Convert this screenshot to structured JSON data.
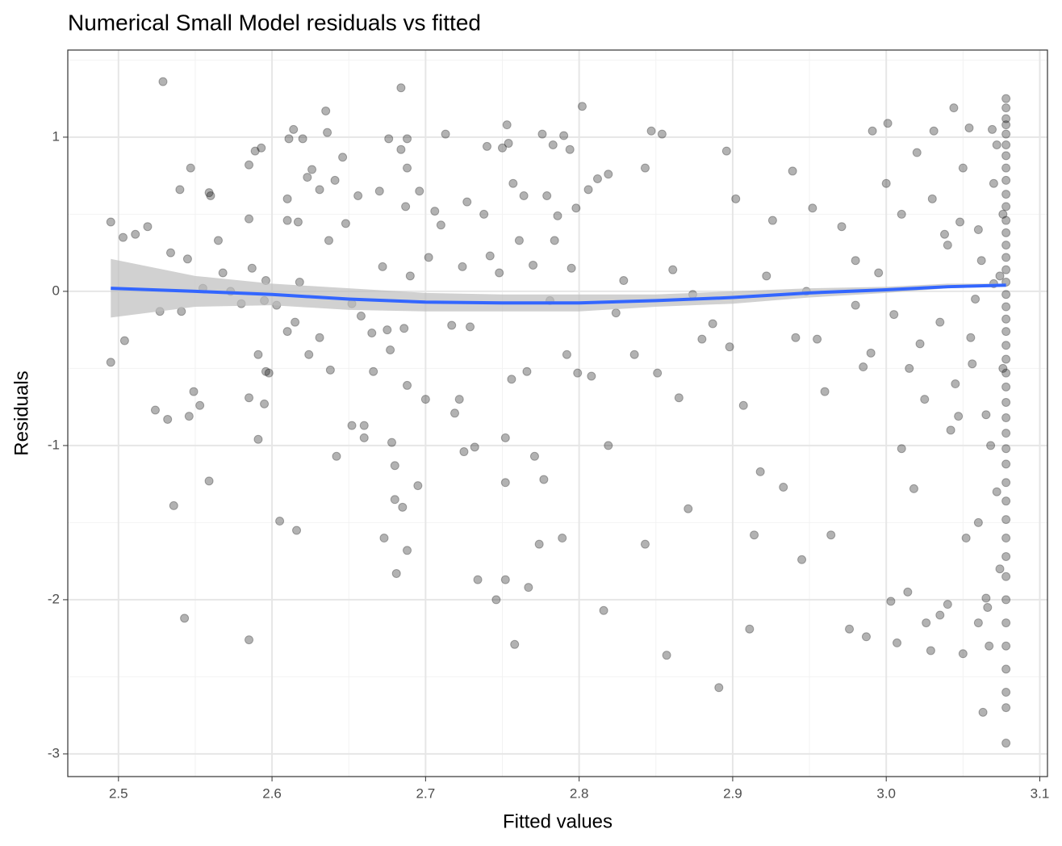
{
  "chart_data": {
    "type": "scatter",
    "title": "Numerical Small Model residuals vs fitted",
    "xlabel": "Fitted values",
    "ylabel": "Residuals",
    "xlim": [
      2.467,
      3.105
    ],
    "ylim": [
      -3.147,
      1.565
    ],
    "xticks": [
      2.5,
      2.6,
      2.7,
      2.8,
      2.9,
      {
        "value": 3.0,
        "label": "3.0"
      },
      3.1
    ],
    "yticks": [
      -3,
      -2,
      -1,
      0,
      1
    ],
    "grid": true,
    "minor_grid": true,
    "point_color": "#000000",
    "point_opacity": 0.3,
    "x": [
      2.495,
      2.495,
      2.503,
      2.504,
      2.511,
      2.519,
      2.524,
      2.527,
      2.529,
      2.532,
      2.534,
      2.536,
      2.54,
      2.541,
      2.543,
      2.545,
      2.546,
      2.547,
      2.549,
      2.553,
      2.555,
      2.559,
      2.559,
      2.56,
      2.565,
      2.568,
      2.573,
      2.58,
      2.585,
      2.585,
      2.585,
      2.585,
      2.587,
      2.589,
      2.591,
      2.591,
      2.593,
      2.595,
      2.595,
      2.596,
      2.596,
      2.598,
      2.603,
      2.605,
      2.61,
      2.61,
      2.61,
      2.611,
      2.614,
      2.615,
      2.616,
      2.617,
      2.618,
      2.62,
      2.623,
      2.624,
      2.626,
      2.631,
      2.631,
      2.635,
      2.636,
      2.637,
      2.638,
      2.641,
      2.642,
      2.646,
      2.648,
      2.652,
      2.652,
      2.656,
      2.658,
      2.66,
      2.66,
      2.665,
      2.666,
      2.67,
      2.672,
      2.673,
      2.675,
      2.676,
      2.677,
      2.678,
      2.68,
      2.68,
      2.681,
      2.684,
      2.684,
      2.685,
      2.686,
      2.687,
      2.688,
      2.688,
      2.688,
      2.688,
      2.69,
      2.695,
      2.696,
      2.7,
      2.702,
      2.706,
      2.71,
      2.713,
      2.717,
      2.719,
      2.722,
      2.724,
      2.725,
      2.727,
      2.729,
      2.732,
      2.734,
      2.738,
      2.74,
      2.742,
      2.746,
      2.748,
      2.75,
      2.752,
      2.752,
      2.752,
      2.753,
      2.754,
      2.756,
      2.757,
      2.758,
      2.761,
      2.764,
      2.767,
      2.766,
      2.77,
      2.771,
      2.774,
      2.776,
      2.777,
      2.779,
      2.781,
      2.783,
      2.784,
      2.786,
      2.789,
      2.79,
      2.792,
      2.794,
      2.795,
      2.798,
      2.799,
      2.802,
      2.806,
      2.808,
      2.812,
      2.816,
      2.819,
      2.819,
      2.824,
      2.829,
      2.836,
      2.843,
      2.843,
      2.847,
      2.851,
      2.854,
      2.857,
      2.861,
      2.865,
      2.871,
      2.874,
      2.88,
      2.887,
      2.891,
      2.896,
      2.898,
      2.902,
      2.907,
      2.911,
      2.914,
      2.918,
      2.922,
      2.926,
      2.933,
      2.939,
      2.941,
      2.945,
      2.948,
      2.952,
      2.955,
      2.96,
      2.964,
      2.971,
      2.976,
      2.98,
      2.985,
      2.987,
      2.991,
      2.995,
      3.001,
      3.003,
      3.007,
      3.01,
      3.014,
      3.018,
      3.022,
      3.026,
      3.029,
      3.031,
      3.035,
      3.038,
      3.04,
      3.044,
      3.047,
      3.05,
      3.054,
      3.056,
      3.06,
      3.063,
      3.065,
      3.067,
      3.069,
      3.07,
      3.03,
      3.035,
      3.04,
      3.045,
      3.05,
      3.055,
      3.06,
      3.065,
      3.07,
      3.072,
      3.074,
      3.02,
      3.025,
      3.01,
      3.015,
      2.98,
      2.99,
      3.0,
      3.005,
      3.06,
      3.068,
      3.072,
      3.062,
      3.058,
      3.048,
      3.042,
      3.052,
      3.066,
      3.074,
      3.076,
      3.076,
      3.078,
      3.078,
      3.078,
      3.078,
      3.078,
      3.078,
      3.078,
      3.078,
      3.078,
      3.078,
      3.078,
      3.078,
      3.078,
      3.078,
      3.078,
      3.078,
      3.078,
      3.078,
      3.078,
      3.078,
      3.078,
      3.078,
      3.078,
      3.078,
      3.078,
      3.078,
      3.078,
      3.078,
      3.078,
      3.078,
      3.078,
      3.078,
      3.078,
      3.078,
      3.078,
      3.078,
      3.078,
      3.078,
      3.078,
      3.078,
      3.078,
      3.078,
      3.078
    ],
    "y": [
      0.45,
      -0.46,
      0.35,
      -0.32,
      0.37,
      0.42,
      -0.77,
      -0.13,
      1.36,
      -0.83,
      0.25,
      -1.39,
      0.66,
      -0.13,
      -2.12,
      0.21,
      -0.81,
      0.8,
      -0.65,
      -0.74,
      0.02,
      -1.23,
      0.64,
      0.62,
      0.33,
      0.12,
      0.0,
      -0.08,
      -2.26,
      0.82,
      0.47,
      -0.69,
      0.15,
      0.91,
      -0.96,
      -0.41,
      0.93,
      -0.73,
      -0.06,
      -0.52,
      0.07,
      -0.53,
      -0.09,
      -1.49,
      0.6,
      0.46,
      -0.26,
      0.99,
      1.05,
      -0.2,
      -1.55,
      0.45,
      0.06,
      0.99,
      0.74,
      -0.41,
      0.79,
      0.66,
      -0.3,
      1.17,
      1.03,
      0.33,
      -0.51,
      0.72,
      -1.07,
      0.87,
      0.44,
      -0.87,
      -0.08,
      0.62,
      -0.16,
      -0.87,
      -0.95,
      -0.27,
      -0.52,
      0.65,
      0.16,
      -1.6,
      -0.25,
      0.99,
      -0.38,
      -0.98,
      -1.13,
      -1.35,
      -1.83,
      0.92,
      1.32,
      -1.4,
      -0.24,
      0.55,
      -1.68,
      0.99,
      0.8,
      -0.61,
      0.1,
      -1.26,
      0.65,
      -0.7,
      0.22,
      0.52,
      0.43,
      1.02,
      -0.22,
      -0.79,
      -0.7,
      0.16,
      -1.04,
      0.58,
      -0.23,
      -1.01,
      -1.87,
      0.5,
      0.94,
      0.23,
      -2.0,
      0.12,
      0.93,
      -1.24,
      -0.95,
      -1.87,
      1.08,
      0.96,
      -0.57,
      0.7,
      -2.29,
      0.33,
      0.62,
      -1.92,
      -0.52,
      0.17,
      -1.07,
      -1.64,
      1.02,
      -1.22,
      0.62,
      -0.06,
      0.95,
      0.33,
      0.49,
      -1.6,
      1.01,
      -0.41,
      0.92,
      0.15,
      0.54,
      -0.53,
      1.2,
      0.66,
      -0.55,
      0.73,
      -2.07,
      -1.0,
      0.76,
      -0.14,
      0.07,
      -0.41,
      0.8,
      -1.64,
      1.04,
      -0.53,
      1.02,
      -2.36,
      0.14,
      -0.69,
      -1.41,
      -0.02,
      -0.31,
      -0.21,
      -2.57,
      0.91,
      -0.36,
      0.6,
      -0.74,
      -2.19,
      -1.58,
      -1.17,
      0.1,
      0.46,
      -1.27,
      0.78,
      -0.3,
      -1.74,
      0.0,
      0.54,
      -0.31,
      -0.65,
      -1.58,
      0.42,
      -2.19,
      -0.09,
      -0.49,
      -2.24,
      1.04,
      0.12,
      1.09,
      -2.01,
      -2.28,
      -1.02,
      -1.95,
      -1.28,
      -0.34,
      -2.15,
      -2.33,
      1.04,
      -2.1,
      0.37,
      -2.03,
      1.19,
      -0.81,
      -2.35,
      1.06,
      -0.47,
      -2.15,
      -2.73,
      -1.99,
      -2.3,
      1.05,
      0.05,
      0.6,
      -0.2,
      0.3,
      -0.6,
      0.8,
      -0.3,
      0.4,
      -0.8,
      0.7,
      -1.3,
      0.1,
      0.9,
      -0.7,
      0.5,
      -0.5,
      0.2,
      -0.4,
      0.7,
      -0.15,
      -1.5,
      -1.0,
      0.95,
      0.2,
      -0.05,
      0.45,
      -0.9,
      -1.6,
      -2.05,
      -1.8,
      0.5,
      -0.5,
      1.25,
      1.19,
      1.12,
      1.08,
      1.02,
      0.95,
      0.88,
      0.8,
      0.72,
      0.63,
      0.55,
      0.46,
      0.38,
      0.3,
      0.22,
      0.14,
      0.06,
      -0.02,
      -0.1,
      -0.18,
      -0.26,
      -0.35,
      -0.44,
      -0.53,
      -0.62,
      -0.72,
      -0.82,
      -0.92,
      -1.02,
      -1.12,
      -1.24,
      -1.36,
      -1.48,
      -1.6,
      -1.72,
      -1.85,
      -2.0,
      -2.15,
      -2.3,
      -2.45,
      -2.6,
      -2.7,
      -2.93
    ],
    "smooth": {
      "color": "#3366ff",
      "band_color": "#bdbdbd",
      "x": [
        2.495,
        2.55,
        2.6,
        2.65,
        2.7,
        2.75,
        2.8,
        2.85,
        2.9,
        2.95,
        3.0,
        3.04,
        3.078
      ],
      "y": [
        0.02,
        0.0,
        -0.02,
        -0.05,
        -0.07,
        -0.075,
        -0.075,
        -0.06,
        -0.04,
        -0.01,
        0.01,
        0.03,
        0.04
      ],
      "lower": [
        -0.17,
        -0.1,
        -0.09,
        -0.12,
        -0.13,
        -0.13,
        -0.13,
        -0.1,
        -0.08,
        -0.04,
        -0.01,
        0.02,
        0.03
      ],
      "upper": [
        0.21,
        0.1,
        0.05,
        0.02,
        -0.01,
        -0.02,
        -0.02,
        -0.02,
        0.0,
        0.02,
        0.03,
        0.05,
        0.05
      ]
    }
  }
}
